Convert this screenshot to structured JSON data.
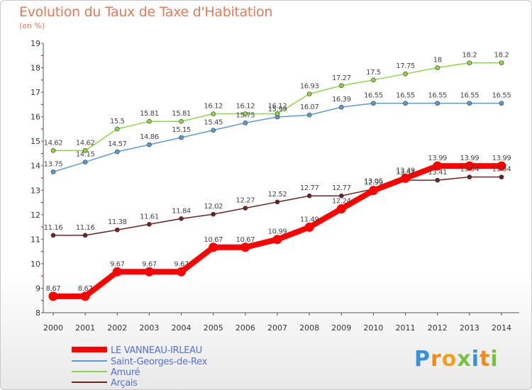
{
  "title": "Evolution du Taux de Taxe d'Habitation",
  "unit": "(en %)",
  "logo": {
    "letters": [
      "P",
      "r",
      "o",
      "x",
      "i",
      "t",
      "i"
    ],
    "colors": [
      "#3a8fd6",
      "#f08a1c",
      "#f0a020",
      "#7ac043",
      "#3a8fd6",
      "#f08a1c",
      "#7ac043"
    ]
  },
  "chart_data": {
    "type": "line",
    "title": "Evolution du Taux de Taxe d'Habitation",
    "ylabel": "(en %)",
    "xlabel": "",
    "x": [
      2000,
      2001,
      2002,
      2003,
      2004,
      2005,
      2006,
      2007,
      2008,
      2009,
      2010,
      2011,
      2012,
      2013,
      2014
    ],
    "ylim": [
      8,
      19
    ],
    "yticks": [
      8,
      9,
      10,
      11,
      12,
      13,
      14,
      15,
      16,
      17,
      18,
      19
    ],
    "grid": false,
    "legend": "bottom-left",
    "series": [
      {
        "name": "LE VANNEAU-IRLEAU",
        "color": "#ff0000",
        "values": [
          8.67,
          8.67,
          9.67,
          9.67,
          9.67,
          10.67,
          10.67,
          10.99,
          11.49,
          12.24,
          12.99,
          13.49,
          13.99,
          13.99,
          13.99
        ]
      },
      {
        "name": "Saint-Georges-de-Rex",
        "color": "#5b9bd5",
        "values": [
          13.75,
          14.15,
          14.57,
          14.86,
          15.15,
          15.45,
          15.75,
          15.99,
          16.07,
          16.39,
          16.55,
          16.55,
          16.55,
          16.55,
          16.55
        ]
      },
      {
        "name": "Amuré",
        "color": "#8fd44a",
        "values": [
          14.62,
          14.62,
          15.5,
          15.81,
          15.81,
          16.12,
          16.12,
          16.12,
          16.93,
          17.27,
          17.5,
          17.75,
          18,
          18.2,
          18.2
        ]
      },
      {
        "name": "Arçais",
        "color": "#6e2323",
        "values": [
          11.16,
          11.16,
          11.38,
          11.61,
          11.84,
          12.02,
          12.27,
          12.52,
          12.77,
          12.77,
          13.05,
          13.41,
          13.41,
          13.54,
          13.54
        ]
      }
    ]
  }
}
